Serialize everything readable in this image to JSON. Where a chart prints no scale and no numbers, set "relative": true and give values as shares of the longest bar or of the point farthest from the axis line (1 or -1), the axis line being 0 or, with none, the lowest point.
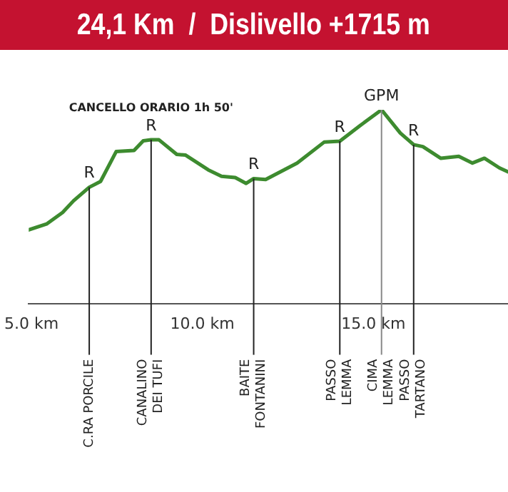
{
  "chart_data": {
    "type": "line",
    "title": "24,1 Km  /  Dislivello +1715 m",
    "relative": true,
    "x": [
      4.92,
      5.44,
      5.91,
      6.23,
      6.69,
      7.02,
      7.48,
      8.0,
      8.27,
      8.5,
      8.73,
      9.25,
      9.51,
      10.17,
      10.56,
      10.96,
      11.28,
      11.5,
      11.85,
      12.77,
      13.56,
      14.02,
      14.61,
      15.24,
      15.79,
      16.18,
      16.45,
      16.97,
      17.5,
      17.9,
      18.25,
      18.69,
      18.94
    ],
    "series": [
      {
        "color": "#3d8b2f",
        "values": [
          0.38,
          0.41,
          0.47,
          0.53,
          0.6,
          0.63,
          0.785,
          0.79,
          0.84,
          0.845,
          0.845,
          0.77,
          0.766,
          0.69,
          0.657,
          0.65,
          0.62,
          0.645,
          0.64,
          0.725,
          0.833,
          0.838,
          0.918,
          1.0,
          0.88,
          0.82,
          0.81,
          0.75,
          0.76,
          0.725,
          0.75,
          0.7,
          0.68
        ]
      }
    ],
    "xlim": [
      4.92,
      18.94
    ],
    "xticks": [
      {
        "value": 5,
        "label": "5.0 km"
      },
      {
        "value": 10,
        "label": "10.0 km"
      },
      {
        "value": 15,
        "label": "15.0 km"
      }
    ],
    "legend": false,
    "marker": "none",
    "line_style": "solid",
    "ref_lines": [
      {
        "axis": "x",
        "value": 6.69,
        "label": "C.RA PORCILE",
        "color": "#222222"
      },
      {
        "axis": "x",
        "value": 8.5,
        "label": "CANALINO\nDEI TUFI",
        "color": "#222222"
      },
      {
        "axis": "x",
        "value": 11.5,
        "label": "BAITE\nFONTANINI",
        "color": "#222222"
      },
      {
        "axis": "x",
        "value": 14.02,
        "label": "PASSO\nLEMMA",
        "color": "#222222"
      },
      {
        "axis": "x",
        "value": 15.24,
        "label": "CIMA\nLEMMA",
        "color": "#888888"
      },
      {
        "axis": "x",
        "value": 16.18,
        "label": "PASSO\nTARTANO",
        "color": "#222222"
      }
    ],
    "annotations": [
      {
        "text": "R",
        "x": 6.69,
        "y": 0.6
      },
      {
        "text": "R",
        "x": 8.5,
        "y": 0.845
      },
      {
        "text": "CANCELLO ORARIO 1h 50'",
        "x": 8.5,
        "y": 0.845
      },
      {
        "text": "R",
        "x": 11.5,
        "y": 0.645
      },
      {
        "text": "R",
        "x": 14.02,
        "y": 0.838
      },
      {
        "text": "GPM",
        "x": 15.24,
        "y": 1.0
      },
      {
        "text": "R",
        "x": 16.18,
        "y": 0.82
      }
    ]
  }
}
